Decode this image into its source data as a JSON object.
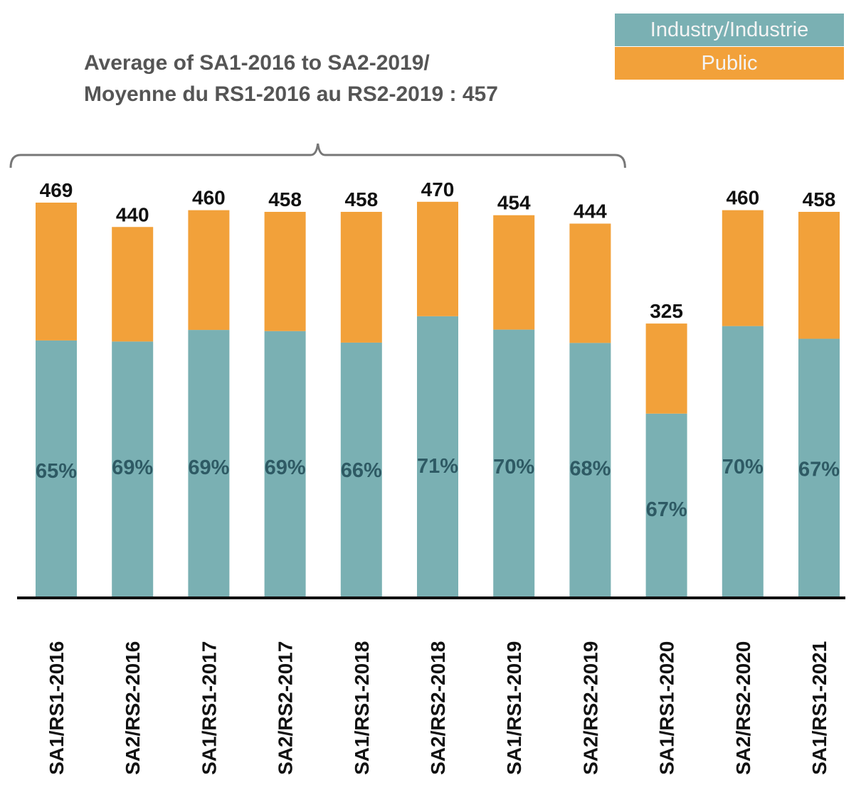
{
  "chart_data": {
    "type": "bar",
    "stacked": true,
    "title": "Average of SA1-2016 to SA2-2019/",
    "subtitle": "Moyenne du RS1-2016 au RS2-2019 : 457",
    "xlabel": "",
    "ylabel": "",
    "grid": false,
    "legend_position": "top-right",
    "categories": [
      "SA1/RS1-2016",
      "SA2/RS2-2016",
      "SA1/RS1-2017",
      "SA2/RS2-2017",
      "SA1/RS1-2018",
      "SA2/RS2-2018",
      "SA1/RS1-2019",
      "SA2/RS2-2019",
      "SA1/RS1-2020",
      "SA2/RS2-2020",
      "SA1/RS1-2021"
    ],
    "totals": [
      469,
      440,
      460,
      458,
      458,
      470,
      454,
      444,
      325,
      460,
      458
    ],
    "industry_share_pct": [
      65,
      69,
      69,
      69,
      66,
      71,
      70,
      68,
      67,
      70,
      67
    ],
    "series": [
      {
        "name": "Industry/Industrie",
        "color": "#7ab0b3",
        "share_pct": [
          65,
          69,
          69,
          69,
          66,
          71,
          70,
          68,
          67,
          70,
          67
        ]
      },
      {
        "name": "Public",
        "color": "#f2a13a",
        "share_pct": [
          35,
          31,
          31,
          31,
          34,
          29,
          30,
          32,
          33,
          30,
          33
        ]
      }
    ],
    "total_labels": [
      "469",
      "440",
      "460",
      "458",
      "458",
      "470",
      "454",
      "444",
      "325",
      "460",
      "458"
    ],
    "pct_labels": [
      "65%",
      "69%",
      "69%",
      "69%",
      "66%",
      "71%",
      "70%",
      "68%",
      "67%",
      "70%",
      "67%"
    ],
    "annotation": {
      "type": "brace",
      "spans_categories": [
        "SA1/RS1-2016",
        "SA2/RS2-2019"
      ],
      "average": 457
    },
    "ylim": [
      0,
      470
    ]
  },
  "legend": {
    "industry_label": "Industry/Industrie",
    "public_label": "Public"
  },
  "header": {
    "title_line1": "Average of SA1-2016 to SA2-2019/",
    "title_line2": "Moyenne du RS1-2016 au RS2-2019 : 457"
  },
  "colors": {
    "industry": "#7ab0b3",
    "public": "#f2a13a",
    "pct_text": "#2e5a64",
    "total_text": "#111111",
    "brace": "#777777",
    "axis": "#111111"
  }
}
